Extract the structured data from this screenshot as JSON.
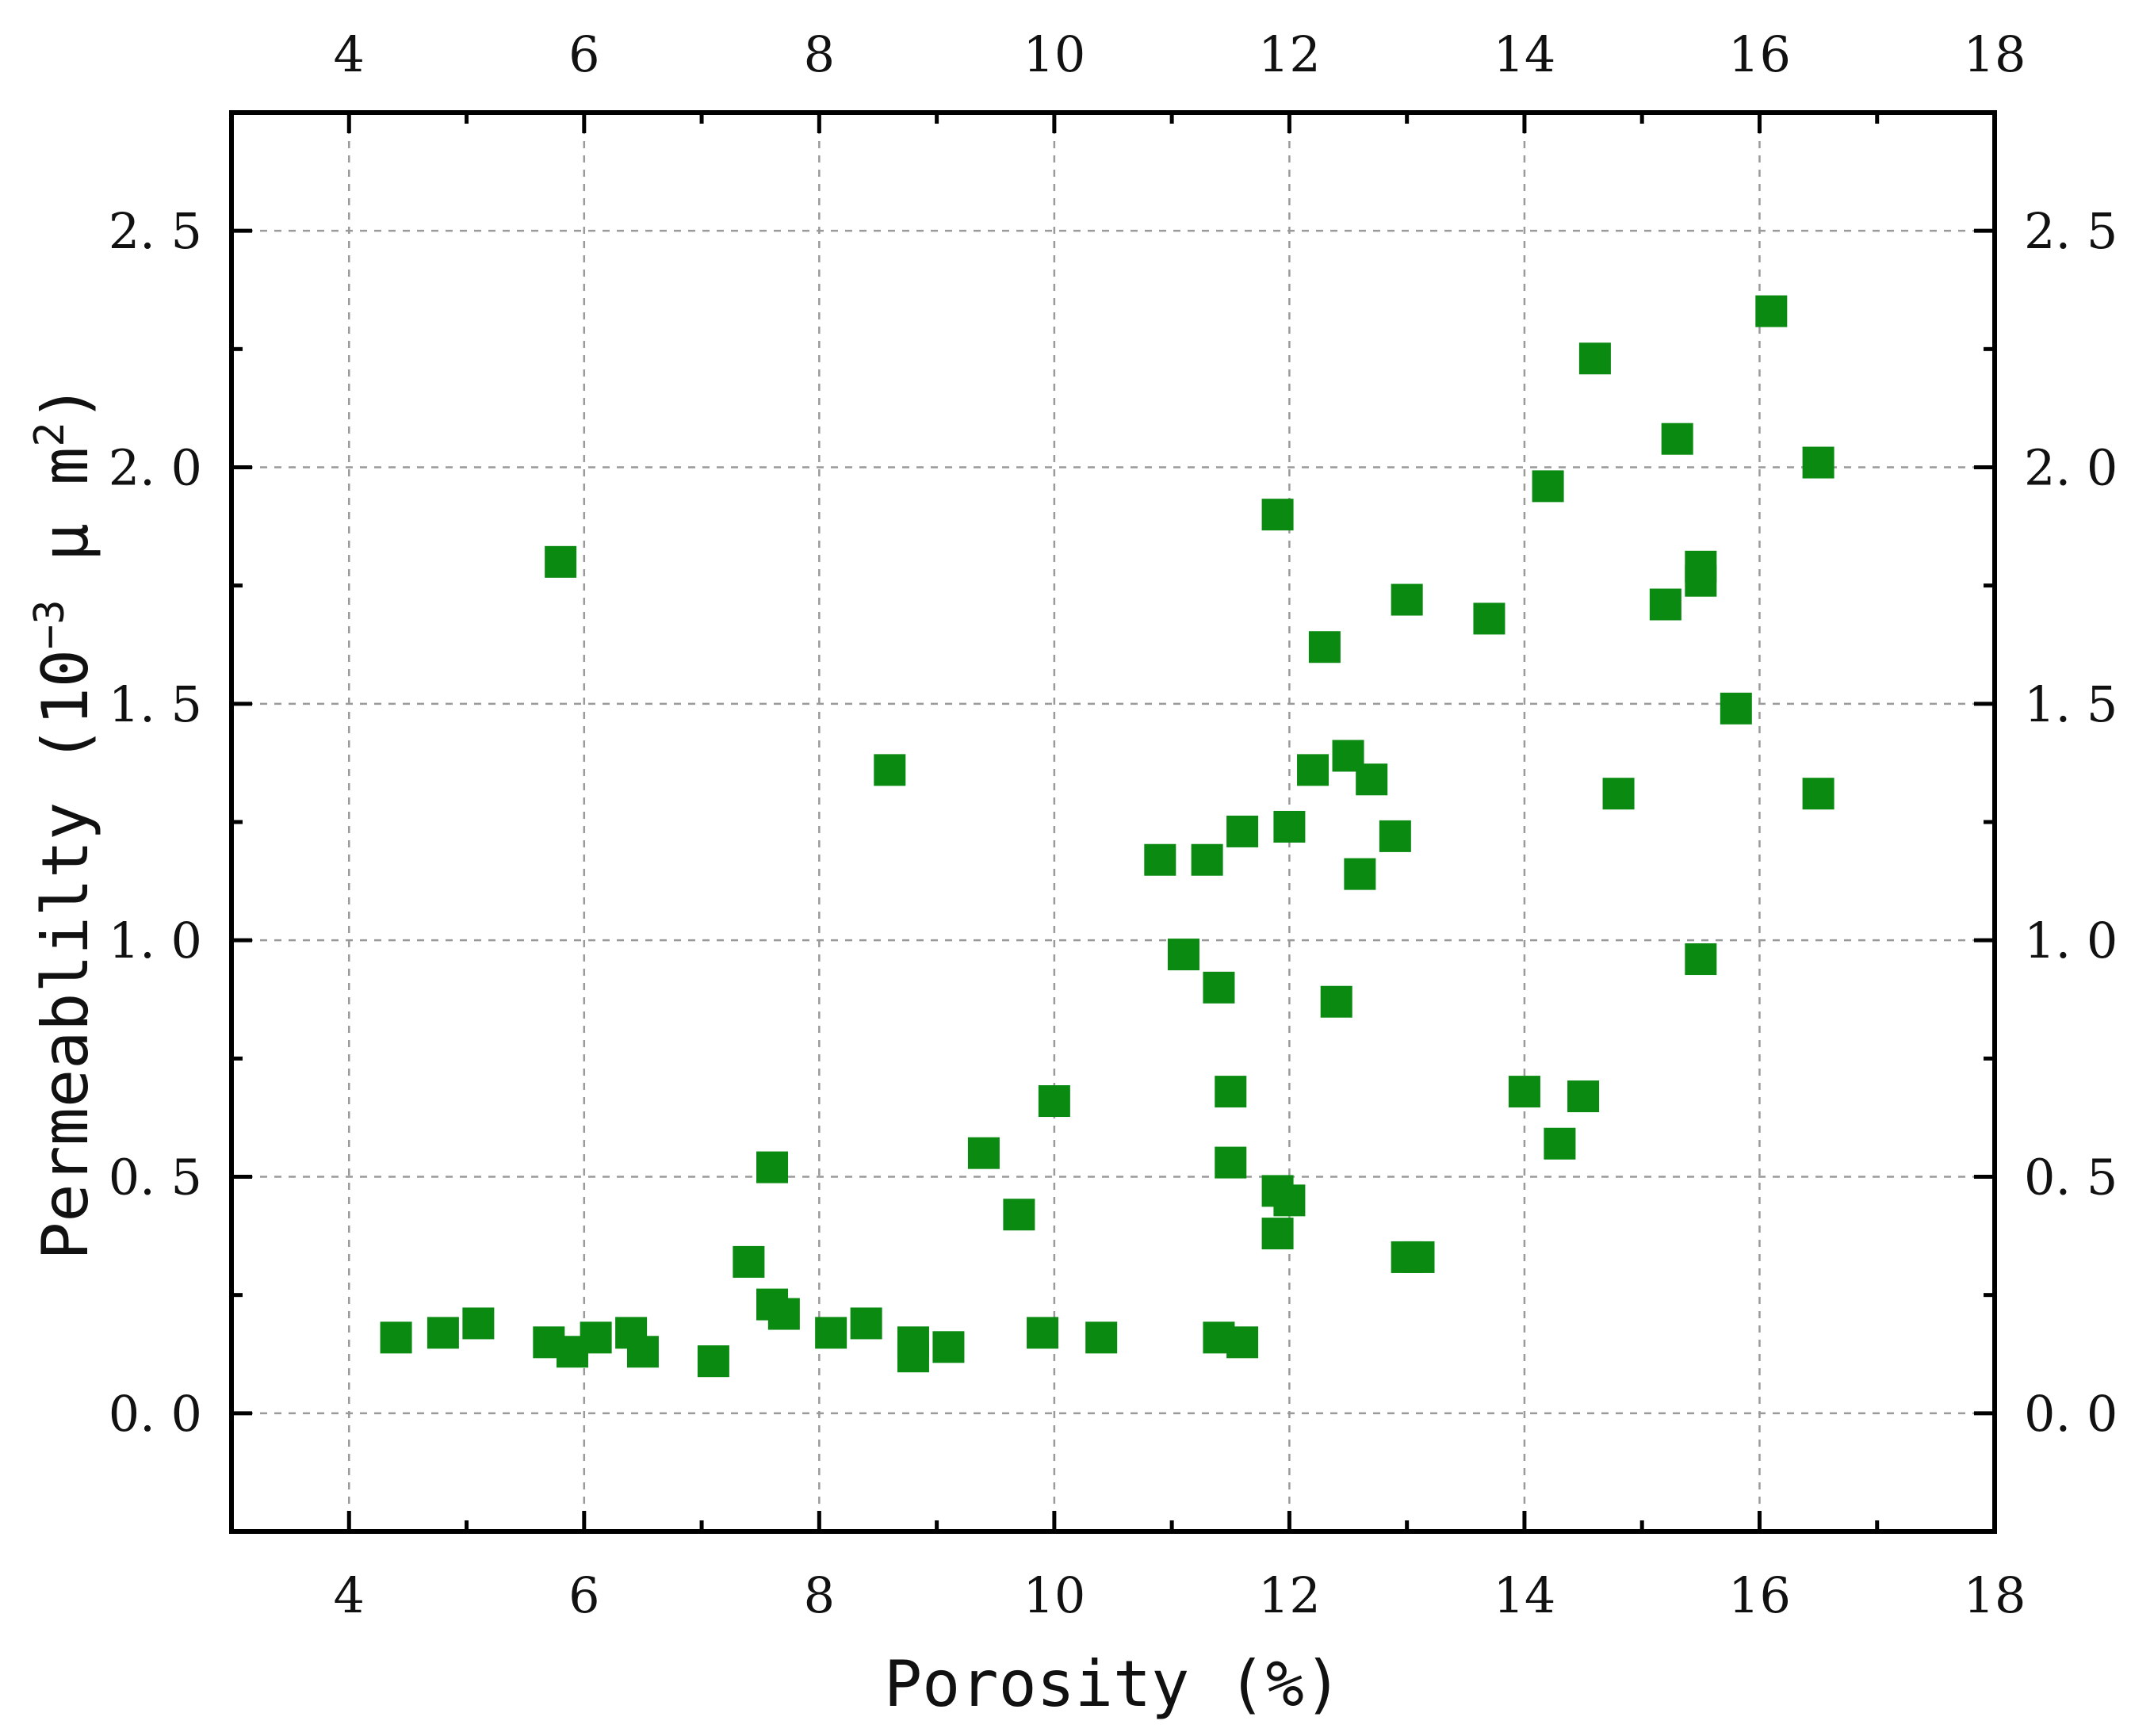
{
  "chart_data": {
    "type": "scatter",
    "xlabel": "Porosity (%)",
    "ylabel_main": "Permeablilty (10",
    "ylabel_sup1": "−3",
    "ylabel_unit": " μ m",
    "ylabel_sup2": "2",
    "ylabel_close": ")",
    "xlim": [
      3,
      18
    ],
    "ylim": [
      -0.25,
      2.75
    ],
    "x_ticks": [
      4,
      6,
      8,
      10,
      12,
      14,
      16,
      18
    ],
    "x_tick_labels": [
      "4",
      "6",
      "8",
      "10",
      "12",
      "14",
      "16",
      "18"
    ],
    "y_ticks": [
      0.0,
      0.5,
      1.0,
      1.5,
      2.0,
      2.5
    ],
    "y_tick_labels": [
      "0. 0",
      "0. 5",
      "1. 0",
      "1. 5",
      "2. 0",
      "2. 5"
    ],
    "grid": true,
    "marker": "square",
    "marker_color": "#0a8a10",
    "points": [
      [
        4.4,
        0.16
      ],
      [
        4.8,
        0.17
      ],
      [
        5.1,
        0.19
      ],
      [
        5.7,
        0.15
      ],
      [
        5.9,
        0.13
      ],
      [
        6.1,
        0.16
      ],
      [
        6.4,
        0.17
      ],
      [
        6.5,
        0.13
      ],
      [
        5.8,
        1.8
      ],
      [
        7.1,
        0.11
      ],
      [
        7.4,
        0.32
      ],
      [
        7.6,
        0.23
      ],
      [
        7.7,
        0.21
      ],
      [
        7.6,
        0.52
      ],
      [
        8.1,
        0.17
      ],
      [
        8.4,
        0.19
      ],
      [
        8.8,
        0.15
      ],
      [
        8.8,
        0.12
      ],
      [
        9.1,
        0.14
      ],
      [
        8.6,
        1.36
      ],
      [
        9.4,
        0.55
      ],
      [
        9.7,
        0.42
      ],
      [
        9.9,
        0.17
      ],
      [
        10.0,
        0.66
      ],
      [
        10.4,
        0.16
      ],
      [
        10.9,
        1.17
      ],
      [
        11.1,
        0.97
      ],
      [
        11.3,
        1.17
      ],
      [
        11.4,
        0.9
      ],
      [
        11.4,
        0.16
      ],
      [
        11.5,
        0.68
      ],
      [
        11.5,
        0.53
      ],
      [
        11.6,
        1.23
      ],
      [
        11.6,
        0.15
      ],
      [
        11.9,
        1.9
      ],
      [
        11.9,
        0.47
      ],
      [
        11.9,
        0.38
      ],
      [
        12.0,
        0.45
      ],
      [
        12.0,
        1.24
      ],
      [
        12.2,
        1.36
      ],
      [
        12.3,
        1.62
      ],
      [
        12.4,
        0.87
      ],
      [
        12.5,
        1.39
      ],
      [
        12.6,
        1.14
      ],
      [
        12.7,
        1.34
      ],
      [
        12.9,
        1.22
      ],
      [
        13.0,
        1.72
      ],
      [
        13.0,
        0.33
      ],
      [
        13.1,
        0.33
      ],
      [
        13.7,
        1.68
      ],
      [
        14.0,
        0.68
      ],
      [
        14.2,
        1.96
      ],
      [
        14.3,
        0.57
      ],
      [
        14.5,
        0.67
      ],
      [
        14.6,
        2.23
      ],
      [
        14.8,
        1.31
      ],
      [
        15.2,
        1.71
      ],
      [
        15.3,
        2.06
      ],
      [
        15.5,
        1.79
      ],
      [
        15.5,
        1.76
      ],
      [
        15.5,
        0.96
      ],
      [
        15.8,
        1.49
      ],
      [
        16.1,
        2.33
      ],
      [
        16.5,
        2.01
      ],
      [
        16.5,
        1.31
      ]
    ]
  }
}
